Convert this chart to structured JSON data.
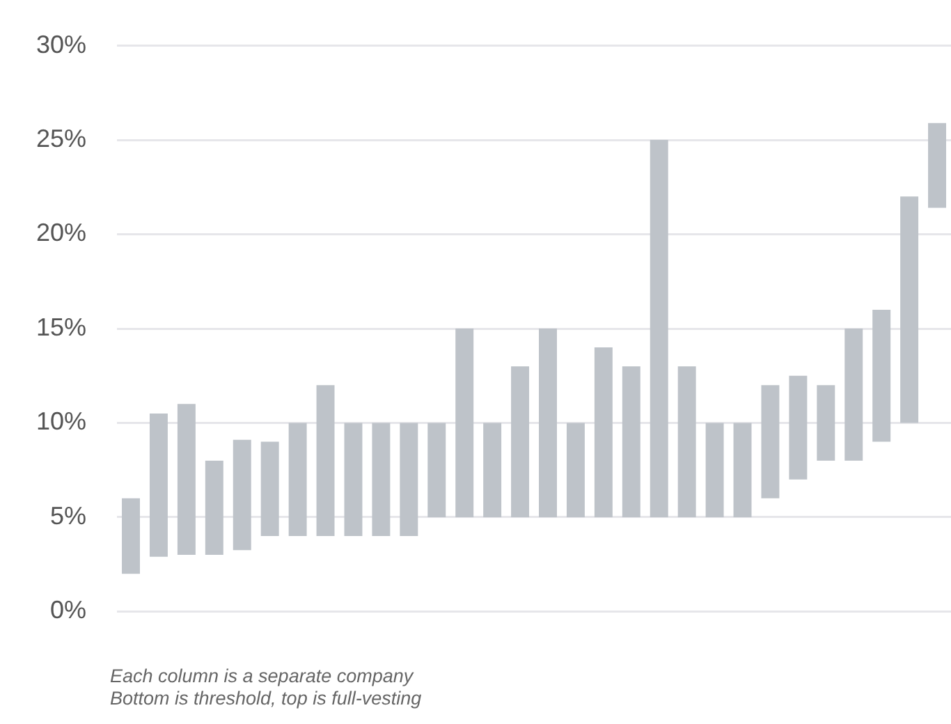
{
  "chart_data": {
    "type": "bar",
    "categories": [
      null,
      null,
      null,
      null,
      null,
      null,
      null,
      null,
      null,
      null,
      null,
      null,
      null,
      null,
      null,
      null,
      null,
      null,
      null,
      null,
      null,
      null,
      null,
      null,
      null,
      null,
      null,
      null,
      null,
      null
    ],
    "base": [
      2,
      2.9,
      3,
      3,
      3.25,
      4,
      4,
      4,
      4,
      4,
      4,
      5,
      5,
      5,
      5,
      5,
      5,
      5,
      5,
      5,
      5,
      5,
      5,
      6,
      7,
      8,
      8,
      9,
      10,
      21.4
    ],
    "values": [
      4,
      7.6,
      8,
      5,
      5.85,
      5,
      6,
      8,
      6,
      6,
      6,
      5,
      10,
      5,
      8,
      10,
      5,
      9,
      8,
      20,
      8,
      5,
      5,
      6,
      5.5,
      4,
      7,
      7,
      12,
      4.5
    ],
    "color": "#bec3c9",
    "ylim": [
      0,
      30
    ],
    "yticks": [
      {
        "value": 0,
        "label": "0%"
      },
      {
        "value": 5,
        "label": "5%"
      },
      {
        "value": 10,
        "label": "10%"
      },
      {
        "value": 15,
        "label": "15%"
      },
      {
        "value": 20,
        "label": "20%"
      },
      {
        "value": 25,
        "label": "25%"
      },
      {
        "value": 30,
        "label": "30%"
      }
    ],
    "grid": "y",
    "tick_labels": "y",
    "annotations": [
      "Each column is a separate company",
      "Bottom is threshold, top is full-vesting"
    ]
  }
}
